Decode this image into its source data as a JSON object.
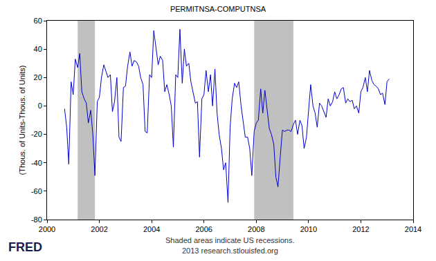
{
  "chart_data": {
    "type": "line",
    "title": "PERMITNSA-COMPUTNSA",
    "y_label": "(Thous. of Units-Thous. of Units)",
    "notes": [
      "Shaded areas indicate US recessions.",
      "2013 research.stlouisfed.org"
    ],
    "logo": "FRED",
    "color": "#0000cc",
    "grid": false,
    "xlim": [
      2000,
      2014
    ],
    "xticks": [
      2000,
      2002,
      2004,
      2006,
      2008,
      2010,
      2012,
      2014
    ],
    "ylim": [
      -80,
      60
    ],
    "yticks": [
      -80,
      -60,
      -40,
      -20,
      0,
      20,
      40,
      60
    ],
    "recessions": [
      {
        "start": 2001.17,
        "end": 2001.83
      },
      {
        "start": 2007.92,
        "end": 2009.42
      }
    ],
    "recession_color": "#c0c0c0",
    "x": [
      2000.67,
      2000.75,
      2000.83,
      2000.92,
      2001.0,
      2001.08,
      2001.17,
      2001.25,
      2001.33,
      2001.42,
      2001.5,
      2001.58,
      2001.67,
      2001.75,
      2001.83,
      2001.92,
      2002.0,
      2002.08,
      2002.17,
      2002.25,
      2002.33,
      2002.42,
      2002.5,
      2002.58,
      2002.67,
      2002.75,
      2002.83,
      2002.92,
      2003.0,
      2003.08,
      2003.17,
      2003.25,
      2003.33,
      2003.42,
      2003.5,
      2003.58,
      2003.67,
      2003.75,
      2003.83,
      2003.92,
      2004.0,
      2004.08,
      2004.17,
      2004.25,
      2004.33,
      2004.42,
      2004.5,
      2004.58,
      2004.67,
      2004.75,
      2004.83,
      2004.92,
      2005.0,
      2005.08,
      2005.17,
      2005.25,
      2005.33,
      2005.42,
      2005.5,
      2005.58,
      2005.67,
      2005.75,
      2005.83,
      2005.92,
      2006.0,
      2006.08,
      2006.17,
      2006.25,
      2006.33,
      2006.42,
      2006.5,
      2006.58,
      2006.67,
      2006.75,
      2006.83,
      2006.92,
      2007.0,
      2007.08,
      2007.17,
      2007.25,
      2007.33,
      2007.42,
      2007.5,
      2007.58,
      2007.67,
      2007.75,
      2007.83,
      2007.92,
      2008.0,
      2008.08,
      2008.17,
      2008.25,
      2008.33,
      2008.42,
      2008.5,
      2008.58,
      2008.67,
      2008.75,
      2008.83,
      2008.92,
      2009.0,
      2009.08,
      2009.17,
      2009.25,
      2009.33,
      2009.42,
      2009.5,
      2009.58,
      2009.67,
      2009.75,
      2009.83,
      2009.92,
      2010.0,
      2010.08,
      2010.17,
      2010.25,
      2010.33,
      2010.42,
      2010.5,
      2010.58,
      2010.67,
      2010.75,
      2010.83,
      2010.92,
      2011.0,
      2011.08,
      2011.17,
      2011.25,
      2011.33,
      2011.42,
      2011.5,
      2011.58,
      2011.67,
      2011.75,
      2011.83,
      2011.92,
      2012.0,
      2012.08,
      2012.17,
      2012.25,
      2012.33,
      2012.42,
      2012.5,
      2012.58,
      2012.67,
      2012.75,
      2012.83,
      2012.92,
      2013.0,
      2013.08
    ],
    "values": [
      -2,
      -15,
      -41,
      17,
      8,
      33,
      27,
      37,
      10,
      5,
      2,
      -12,
      -3,
      -20,
      -49,
      3,
      6,
      20,
      29,
      25,
      20,
      22,
      -4,
      3,
      20,
      -22,
      -25,
      13,
      14,
      28,
      38,
      28,
      32,
      31,
      28,
      20,
      15,
      -18,
      -19,
      22,
      20,
      53,
      40,
      29,
      35,
      32,
      10,
      15,
      8,
      0,
      -29,
      22,
      20,
      54,
      16,
      40,
      28,
      30,
      17,
      10,
      2,
      3,
      -36,
      5,
      8,
      25,
      10,
      22,
      0,
      26,
      -5,
      -20,
      -30,
      -45,
      -40,
      -68,
      -15,
      5,
      16,
      13,
      17,
      0,
      -10,
      -22,
      -22,
      -30,
      -49,
      -18,
      -12,
      -10,
      12,
      -5,
      11,
      -5,
      -16,
      -20,
      -27,
      -50,
      -57,
      -35,
      -17,
      -18,
      -17,
      -17,
      -18,
      -13,
      -10,
      -20,
      -10,
      -14,
      -30,
      -22,
      -5,
      15,
      0,
      -5,
      -15,
      2,
      0,
      -4,
      -8,
      5,
      0,
      3,
      10,
      5,
      8,
      12,
      13,
      2,
      5,
      3,
      4,
      -2,
      0,
      -5,
      10,
      13,
      20,
      10,
      25,
      18,
      15,
      14,
      12,
      8,
      9,
      1,
      17,
      19
    ]
  }
}
